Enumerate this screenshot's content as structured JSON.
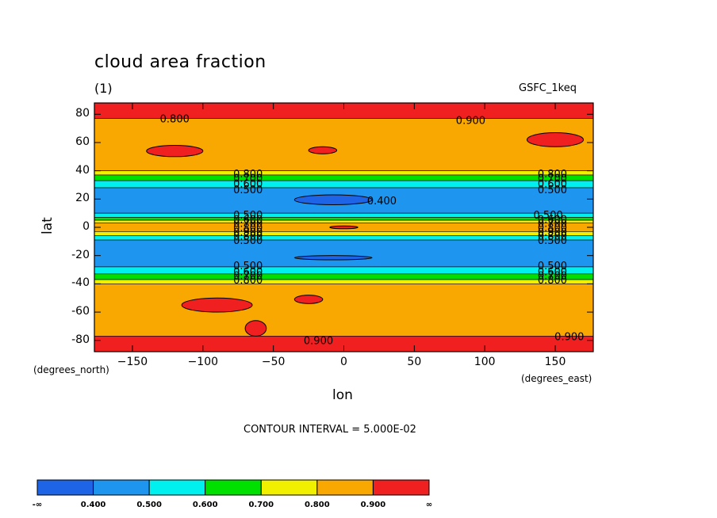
{
  "chart_data": {
    "type": "heatmap",
    "title": "cloud area fraction",
    "subtitle": "(1)",
    "dataset": "GSFC_1keq",
    "xlabel": "lon",
    "ylabel": "lat",
    "x_units": "(degrees_east)",
    "y_units": "(degrees_north)",
    "xlim": [
      -177,
      177
    ],
    "ylim": [
      -88,
      88
    ],
    "xticks": [
      "-150",
      "-100",
      "-50",
      "0",
      "50",
      "100",
      "150"
    ],
    "yticks": [
      "80",
      "60",
      "40",
      "20",
      "0",
      "-20",
      "-40",
      "-60",
      "-80"
    ],
    "contour_interval_note": "CONTOUR INTERVAL = 5.000E-02",
    "levels": [
      "-∞",
      "0.400",
      "0.500",
      "0.600",
      "0.700",
      "0.800",
      "0.900",
      "∞"
    ],
    "colors": [
      "#1e64e6",
      "#1e96f0",
      "#00f0f0",
      "#00e000",
      "#f0f000",
      "#f8a800",
      "#f02020"
    ],
    "latitude_bands": [
      {
        "from": 88,
        "to": 77,
        "value": 0.93
      },
      {
        "from": 77,
        "to": 40,
        "value": 0.85
      },
      {
        "from": 40,
        "to": 37,
        "value": 0.75
      },
      {
        "from": 37,
        "to": 33,
        "value": 0.65
      },
      {
        "from": 33,
        "to": 28,
        "value": 0.55
      },
      {
        "from": 28,
        "to": 10,
        "value": 0.45
      },
      {
        "from": 10,
        "to": 7,
        "value": 0.55
      },
      {
        "from": 7,
        "to": 5,
        "value": 0.65
      },
      {
        "from": 5,
        "to": 3,
        "value": 0.75
      },
      {
        "from": 3,
        "to": -3,
        "value": 0.85
      },
      {
        "from": -3,
        "to": -6,
        "value": 0.75
      },
      {
        "from": -6,
        "to": -9,
        "value": 0.55
      },
      {
        "from": -9,
        "to": -28,
        "value": 0.45
      },
      {
        "from": -28,
        "to": -33,
        "value": 0.55
      },
      {
        "from": -33,
        "to": -37,
        "value": 0.65
      },
      {
        "from": -37,
        "to": -40,
        "value": 0.75
      },
      {
        "from": -40,
        "to": -77,
        "value": 0.85
      },
      {
        "from": -77,
        "to": -88,
        "value": 0.93
      }
    ],
    "contour_labels": [
      {
        "text": "0.800",
        "x": -120,
        "y": 77
      },
      {
        "text": "0.900",
        "x": 90,
        "y": 76
      },
      {
        "text": "0.800",
        "x": -68,
        "y": 38
      },
      {
        "text": "0.700",
        "x": -68,
        "y": 35
      },
      {
        "text": "0.600",
        "x": -68,
        "y": 31
      },
      {
        "text": "0.500",
        "x": -68,
        "y": 27
      },
      {
        "text": "0.800",
        "x": 148,
        "y": 38
      },
      {
        "text": "0.700",
        "x": 148,
        "y": 35
      },
      {
        "text": "0.600",
        "x": 148,
        "y": 31
      },
      {
        "text": "0.500",
        "x": 148,
        "y": 27
      },
      {
        "text": "0.400",
        "x": 27,
        "y": 19
      },
      {
        "text": "0.500",
        "x": -68,
        "y": 9
      },
      {
        "text": "0.600",
        "x": -68,
        "y": 6
      },
      {
        "text": "0.700",
        "x": -68,
        "y": 3
      },
      {
        "text": "0.800",
        "x": -68,
        "y": 0
      },
      {
        "text": "0.900",
        "x": -68,
        "y": -3
      },
      {
        "text": "0.800",
        "x": -68,
        "y": -6
      },
      {
        "text": "0.500",
        "x": -68,
        "y": -9
      },
      {
        "text": "0.500",
        "x": 145,
        "y": 9
      },
      {
        "text": "0.600",
        "x": 148,
        "y": 6
      },
      {
        "text": "0.700",
        "x": 148,
        "y": 3
      },
      {
        "text": "0.800",
        "x": 148,
        "y": 0
      },
      {
        "text": "0.900",
        "x": 148,
        "y": -3
      },
      {
        "text": "0.800",
        "x": 148,
        "y": -6
      },
      {
        "text": "0.500",
        "x": 148,
        "y": -9
      },
      {
        "text": "0.500",
        "x": -68,
        "y": -27
      },
      {
        "text": "0.600",
        "x": -68,
        "y": -31
      },
      {
        "text": "0.700",
        "x": -68,
        "y": -34
      },
      {
        "text": "0.800",
        "x": -68,
        "y": -37
      },
      {
        "text": "0.500",
        "x": 148,
        "y": -27
      },
      {
        "text": "0.600",
        "x": 148,
        "y": -31
      },
      {
        "text": "0.700",
        "x": 148,
        "y": -34
      },
      {
        "text": "0.800",
        "x": 148,
        "y": -37
      },
      {
        "text": "0.900",
        "x": -18,
        "y": -80
      },
      {
        "text": "0.900",
        "x": 160,
        "y": -77
      }
    ],
    "patches": [
      {
        "lon": [
          -140,
          -100
        ],
        "lat": [
          50,
          58
        ],
        "value": 0.93
      },
      {
        "lon": [
          -25,
          -5
        ],
        "lat": [
          52,
          57
        ],
        "value": 0.93
      },
      {
        "lon": [
          130,
          170
        ],
        "lat": [
          57,
          67
        ],
        "value": 0.93
      },
      {
        "lon": [
          -35,
          20
        ],
        "lat": [
          16,
          23
        ],
        "value": 0.35
      },
      {
        "lon": [
          -10,
          10
        ],
        "lat": [
          -1,
          1
        ],
        "value": 0.93
      },
      {
        "lon": [
          -35,
          20
        ],
        "lat": [
          -20,
          -23
        ],
        "value": 0.35
      },
      {
        "lon": [
          -115,
          -65
        ],
        "lat": [
          -50,
          -60
        ],
        "value": 0.93
      },
      {
        "lon": [
          -35,
          -15
        ],
        "lat": [
          -48,
          -54
        ],
        "value": 0.93
      },
      {
        "lon": [
          -70,
          -55
        ],
        "lat": [
          -66,
          -77
        ],
        "value": 0.93
      }
    ]
  }
}
